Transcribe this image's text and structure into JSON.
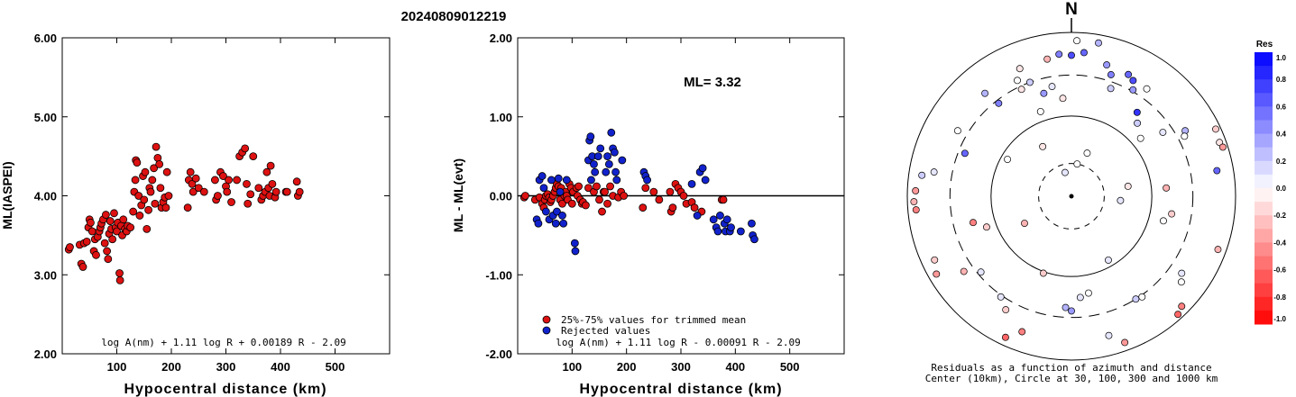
{
  "event_id": "20240809012219",
  "left_chart": {
    "type": "scatter",
    "xlabel": "Hypocentral distance (km)",
    "ylabel": "ML(IASPEI)",
    "xlim": [
      0,
      600
    ],
    "ylim": [
      2.0,
      6.0
    ],
    "x_ticks": [
      "100",
      "200",
      "300",
      "400",
      "500"
    ],
    "y_ticks": [
      "2.00",
      "3.00",
      "4.00",
      "5.00",
      "6.00"
    ],
    "formula": "log A(nm) + 1.11 log R + 0.00189 R - 2.09",
    "point_color": "#dd1111",
    "points": [
      [
        12,
        3.32
      ],
      [
        14,
        3.35
      ],
      [
        32,
        3.38
      ],
      [
        35,
        3.14
      ],
      [
        38,
        3.1
      ],
      [
        40,
        3.4
      ],
      [
        45,
        3.42
      ],
      [
        48,
        3.6
      ],
      [
        50,
        3.7
      ],
      [
        52,
        3.66
      ],
      [
        55,
        3.55
      ],
      [
        58,
        3.3
      ],
      [
        60,
        3.45
      ],
      [
        62,
        3.25
      ],
      [
        65,
        3.48
      ],
      [
        68,
        3.55
      ],
      [
        70,
        3.6
      ],
      [
        72,
        3.65
      ],
      [
        75,
        3.7
      ],
      [
        78,
        3.4
      ],
      [
        80,
        3.76
      ],
      [
        82,
        3.3
      ],
      [
        84,
        3.2
      ],
      [
        86,
        3.52
      ],
      [
        88,
        3.68
      ],
      [
        90,
        3.58
      ],
      [
        92,
        3.45
      ],
      [
        95,
        3.78
      ],
      [
        98,
        3.6
      ],
      [
        100,
        3.55
      ],
      [
        102,
        3.66
      ],
      [
        105,
        3.02
      ],
      [
        106,
        2.93
      ],
      [
        108,
        3.62
      ],
      [
        110,
        3.5
      ],
      [
        112,
        3.7
      ],
      [
        115,
        3.58
      ],
      [
        118,
        3.55
      ],
      [
        120,
        3.62
      ],
      [
        125,
        3.6
      ],
      [
        130,
        3.8
      ],
      [
        132,
        4.05
      ],
      [
        134,
        4.2
      ],
      [
        135,
        4.45
      ],
      [
        137,
        4.42
      ],
      [
        140,
        4.0
      ],
      [
        142,
        3.75
      ],
      [
        145,
        3.88
      ],
      [
        148,
        4.25
      ],
      [
        150,
        3.95
      ],
      [
        152,
        4.3
      ],
      [
        155,
        3.58
      ],
      [
        158,
        3.82
      ],
      [
        160,
        4.1
      ],
      [
        162,
        4.05
      ],
      [
        165,
        4.2
      ],
      [
        168,
        4.35
      ],
      [
        170,
        3.9
      ],
      [
        172,
        4.62
      ],
      [
        175,
        4.48
      ],
      [
        178,
        4.4
      ],
      [
        180,
        4.1
      ],
      [
        182,
        3.85
      ],
      [
        185,
        3.92
      ],
      [
        188,
        3.98
      ],
      [
        190,
        3.85
      ],
      [
        192,
        4.3
      ],
      [
        195,
        4.0
      ],
      [
        230,
        3.85
      ],
      [
        232,
        4.2
      ],
      [
        235,
        4.3
      ],
      [
        238,
        4.15
      ],
      [
        240,
        4.05
      ],
      [
        245,
        4.22
      ],
      [
        250,
        4.1
      ],
      [
        260,
        4.05
      ],
      [
        280,
        4.2
      ],
      [
        282,
        3.95
      ],
      [
        285,
        4.0
      ],
      [
        290,
        4.3
      ],
      [
        295,
        4.25
      ],
      [
        300,
        4.12
      ],
      [
        302,
        4.05
      ],
      [
        305,
        4.2
      ],
      [
        310,
        3.92
      ],
      [
        320,
        4.2
      ],
      [
        325,
        4.5
      ],
      [
        330,
        4.55
      ],
      [
        335,
        4.6
      ],
      [
        338,
        4.15
      ],
      [
        340,
        3.9
      ],
      [
        345,
        4.02
      ],
      [
        350,
        4.5
      ],
      [
        360,
        4.1
      ],
      [
        365,
        3.95
      ],
      [
        368,
        4.0
      ],
      [
        372,
        4.05
      ],
      [
        375,
        4.3
      ],
      [
        378,
        4.1
      ],
      [
        380,
        4.0
      ],
      [
        382,
        4.38
      ],
      [
        385,
        4.15
      ],
      [
        390,
        3.98
      ],
      [
        392,
        4.05
      ],
      [
        410,
        4.05
      ],
      [
        412,
        4.05
      ],
      [
        430,
        4.18
      ],
      [
        432,
        4.0
      ],
      [
        435,
        4.05
      ]
    ]
  },
  "middle_chart": {
    "type": "scatter",
    "xlabel": "Hypocentral distance (km)",
    "ylabel": "ML - ML(evt)",
    "xlim": [
      0,
      600
    ],
    "ylim": [
      -2.0,
      2.0
    ],
    "x_ticks": [
      "100",
      "200",
      "300",
      "400",
      "500"
    ],
    "y_ticks": [
      "-2.00",
      "-1.00",
      "0.00",
      "1.00",
      "2.00"
    ],
    "ml_label": "ML= 3.32",
    "formula": "log A(nm) + 1.11 log R - 0.00091 R - 2.09",
    "reference_line": 0.0,
    "legend": [
      {
        "label": "25%-75% values for trimmed mean",
        "color": "#dd1111"
      },
      {
        "label": "Rejected values",
        "color": "#1122cc"
      }
    ],
    "series": [
      {
        "name": "25%-75% values for trimmed mean",
        "color": "#dd1111",
        "points": [
          [
            12,
            -0.02
          ],
          [
            14,
            0.0
          ],
          [
            32,
            -0.05
          ],
          [
            40,
            -0.02
          ],
          [
            45,
            -0.1
          ],
          [
            48,
            -0.15
          ],
          [
            50,
            -0.05
          ],
          [
            52,
            0.0
          ],
          [
            55,
            0.02
          ],
          [
            58,
            -0.02
          ],
          [
            60,
            -0.08
          ],
          [
            62,
            -0.05
          ],
          [
            65,
            0.0
          ],
          [
            68,
            0.05
          ],
          [
            70,
            0.1
          ],
          [
            72,
            0.15
          ],
          [
            75,
            0.12
          ],
          [
            78,
            -0.05
          ],
          [
            80,
            0.1
          ],
          [
            82,
            -0.1
          ],
          [
            86,
            0.0
          ],
          [
            88,
            0.05
          ],
          [
            90,
            0.0
          ],
          [
            92,
            -0.05
          ],
          [
            95,
            0.15
          ],
          [
            98,
            0.1
          ],
          [
            100,
            -0.1
          ],
          [
            102,
            0.05
          ],
          [
            108,
            0.1
          ],
          [
            110,
            0.0
          ],
          [
            112,
            0.12
          ],
          [
            115,
            -0.05
          ],
          [
            118,
            -0.1
          ],
          [
            120,
            -0.08
          ],
          [
            125,
            -0.12
          ],
          [
            130,
            0.1
          ],
          [
            140,
            0.05
          ],
          [
            145,
            0.12
          ],
          [
            150,
            -0.05
          ],
          [
            155,
            -0.2
          ],
          [
            158,
            0.05
          ],
          [
            160,
            0.05
          ],
          [
            165,
            -0.1
          ],
          [
            170,
            0.12
          ],
          [
            175,
            0.0
          ],
          [
            185,
            -0.02
          ],
          [
            190,
            0.05
          ],
          [
            195,
            0.0
          ],
          [
            230,
            -0.15
          ],
          [
            235,
            0.1
          ],
          [
            250,
            0.05
          ],
          [
            260,
            -0.05
          ],
          [
            280,
            0.05
          ],
          [
            282,
            -0.2
          ],
          [
            285,
            -0.15
          ],
          [
            290,
            0.15
          ],
          [
            295,
            0.1
          ],
          [
            300,
            0.05
          ],
          [
            305,
            0.0
          ],
          [
            310,
            -0.1
          ],
          [
            320,
            -0.08
          ],
          [
            325,
            -0.15
          ],
          [
            338,
            -0.2
          ],
          [
            375,
            -0.05
          ],
          [
            378,
            -0.05
          ]
        ]
      },
      {
        "name": "Rejected values",
        "color": "#1122cc",
        "points": [
          [
            35,
            -0.3
          ],
          [
            38,
            -0.35
          ],
          [
            40,
            0.2
          ],
          [
            45,
            0.25
          ],
          [
            48,
            0.1
          ],
          [
            52,
            -0.2
          ],
          [
            58,
            -0.3
          ],
          [
            62,
            0.2
          ],
          [
            65,
            -0.25
          ],
          [
            70,
            -0.35
          ],
          [
            72,
            -0.2
          ],
          [
            75,
            0.22
          ],
          [
            78,
            0.05
          ],
          [
            82,
            -0.25
          ],
          [
            84,
            -0.35
          ],
          [
            90,
            0.2
          ],
          [
            105,
            -0.6
          ],
          [
            106,
            -0.7
          ],
          [
            130,
            0.45
          ],
          [
            132,
            0.7
          ],
          [
            134,
            0.75
          ],
          [
            135,
            0.2
          ],
          [
            137,
            0.5
          ],
          [
            140,
            0.4
          ],
          [
            142,
            0.3
          ],
          [
            148,
            0.5
          ],
          [
            152,
            0.6
          ],
          [
            162,
            0.3
          ],
          [
            165,
            0.5
          ],
          [
            168,
            0.4
          ],
          [
            172,
            0.8
          ],
          [
            175,
            0.6
          ],
          [
            178,
            0.55
          ],
          [
            180,
            0.3
          ],
          [
            182,
            0.2
          ],
          [
            192,
            0.45
          ],
          [
            232,
            0.3
          ],
          [
            235,
            0.25
          ],
          [
            238,
            0.2
          ],
          [
            320,
            0.15
          ],
          [
            330,
            -0.25
          ],
          [
            335,
            0.3
          ],
          [
            340,
            0.35
          ],
          [
            345,
            0.2
          ],
          [
            360,
            -0.3
          ],
          [
            365,
            -0.4
          ],
          [
            368,
            -0.45
          ],
          [
            372,
            -0.25
          ],
          [
            380,
            -0.35
          ],
          [
            382,
            -0.45
          ],
          [
            385,
            -0.3
          ],
          [
            390,
            -0.45
          ],
          [
            392,
            -0.4
          ],
          [
            410,
            -0.45
          ],
          [
            430,
            -0.35
          ],
          [
            432,
            -0.5
          ],
          [
            435,
            -0.55
          ]
        ]
      }
    ]
  },
  "polar_plot": {
    "north_label": "N",
    "caption_line1": "Residuals as a function of azimuth and distance",
    "caption_line2": "Center (10km), Circle at 30, 100, 300 and 1000 km",
    "colorbar_title": "Res",
    "colorbar_ticks": [
      "1.0",
      "0.8",
      "0.6",
      "0.4",
      "0.2",
      "0.0",
      "-0.2",
      "-0.4",
      "-0.6",
      "-0.8",
      "-1.0"
    ],
    "colorbar_range": [
      -1.0,
      1.0
    ],
    "positive_color": "#0000ff",
    "negative_color": "#ff0000",
    "circles_km": [
      30,
      100,
      300,
      1000
    ],
    "stations": [
      [
        -15,
        0.15,
        0.1
      ],
      [
        10,
        0.2,
        0.0
      ],
      [
        80,
        0.35,
        -0.1
      ],
      [
        95,
        0.3,
        0.1
      ],
      [
        240,
        0.33,
        -0.3
      ],
      [
        330,
        0.35,
        -0.1
      ],
      [
        20,
        0.28,
        0.0
      ],
      [
        150,
        0.45,
        0.1
      ],
      [
        200,
        0.5,
        -0.2
      ],
      [
        300,
        0.45,
        0.0
      ],
      [
        -25,
        0.72,
        -0.1
      ],
      [
        -20,
        0.74,
        0.2
      ],
      [
        -10,
        0.85,
        -0.3
      ],
      [
        -5,
        0.87,
        0.5
      ],
      [
        0,
        0.86,
        0.7
      ],
      [
        5,
        0.88,
        0.6
      ],
      [
        10,
        0.95,
        0.3
      ],
      [
        2,
        0.95,
        0.0
      ],
      [
        15,
        0.83,
        0.4
      ],
      [
        20,
        0.7,
        0.2
      ],
      [
        18,
        0.78,
        0.5
      ],
      [
        25,
        0.82,
        0.6
      ],
      [
        28,
        0.8,
        0.7
      ],
      [
        30,
        0.75,
        0.4
      ],
      [
        35,
        0.8,
        0.0
      ],
      [
        38,
        0.65,
        0.8
      ],
      [
        42,
        0.6,
        0.2
      ],
      [
        50,
        0.55,
        0.0
      ],
      [
        55,
        0.68,
        0.1
      ],
      [
        60,
        0.8,
        0.3
      ],
      [
        62,
        0.78,
        0.0
      ],
      [
        65,
        0.97,
        -0.2
      ],
      [
        70,
        0.96,
        -0.1
      ],
      [
        72,
        0.97,
        -0.4
      ],
      [
        80,
        0.9,
        0.6
      ],
      [
        85,
        0.58,
        -0.3
      ],
      [
        100,
        0.62,
        -0.2
      ],
      [
        105,
        0.58,
        0.0
      ],
      [
        110,
        0.95,
        -0.3
      ],
      [
        125,
        0.82,
        0.1
      ],
      [
        128,
        0.85,
        0.0
      ],
      [
        135,
        0.95,
        -0.5
      ],
      [
        138,
        0.97,
        -0.6
      ],
      [
        145,
        0.75,
        0.0
      ],
      [
        148,
        0.74,
        0.2
      ],
      [
        160,
        0.95,
        -0.4
      ],
      [
        165,
        0.88,
        0.1
      ],
      [
        170,
        0.6,
        0.0
      ],
      [
        175,
        0.62,
        0.1
      ],
      [
        180,
        0.7,
        0.4
      ],
      [
        183,
        0.68,
        0.3
      ],
      [
        200,
        0.88,
        -0.5
      ],
      [
        205,
        0.95,
        -0.6
      ],
      [
        210,
        0.8,
        -0.2
      ],
      [
        215,
        0.75,
        0.1
      ],
      [
        230,
        0.72,
        0.1
      ],
      [
        235,
        0.8,
        -0.3
      ],
      [
        240,
        0.95,
        -0.4
      ],
      [
        245,
        0.92,
        -0.2
      ],
      [
        250,
        0.55,
        -0.2
      ],
      [
        255,
        0.62,
        -0.5
      ],
      [
        265,
        0.95,
        -0.5
      ],
      [
        268,
        0.96,
        -0.3
      ],
      [
        272,
        0.95,
        -0.4
      ],
      [
        278,
        0.92,
        0.2
      ],
      [
        280,
        0.85,
        0.1
      ],
      [
        292,
        0.7,
        0.6
      ],
      [
        300,
        0.8,
        0.0
      ],
      [
        320,
        0.82,
        0.3
      ],
      [
        322,
        0.72,
        0.5
      ],
      [
        335,
        0.78,
        0.0
      ],
      [
        338,
        0.84,
        -0.1
      ],
      [
        345,
        0.65,
        0.4
      ],
      [
        350,
        0.68,
        0.1
      ],
      [
        355,
        0.6,
        -0.1
      ],
      [
        340,
        0.55,
        0.0
      ]
    ]
  }
}
